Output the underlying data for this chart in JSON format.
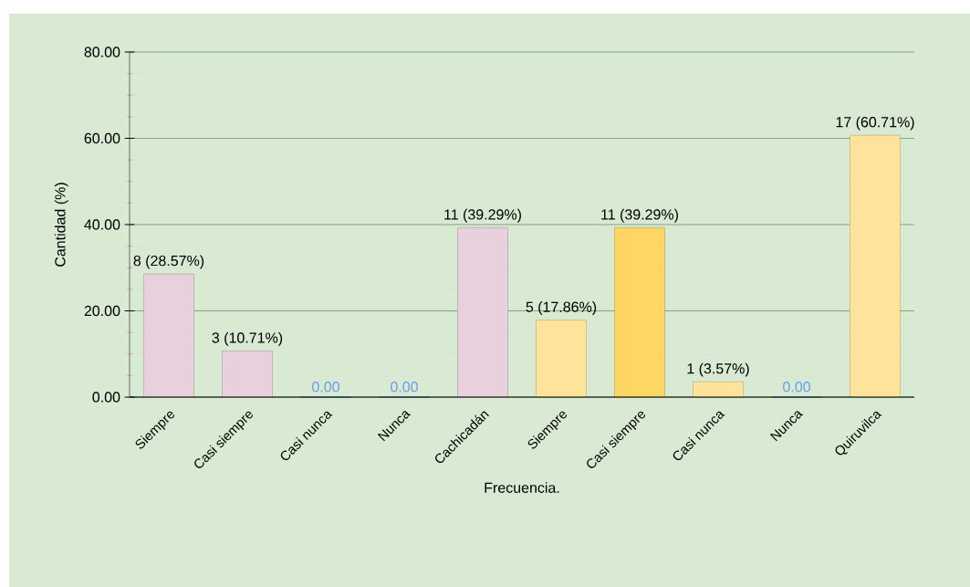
{
  "chart_data": {
    "type": "bar",
    "xlabel": "Frecuencia.",
    "ylabel": "Cantidad (%)",
    "categories": [
      "Siempre",
      "Casi siempre",
      "Casi nunca",
      "Nunca",
      "Cachicadán",
      "Siempre",
      "Casi siempre",
      "Casi nunca",
      "Nunca",
      "Quiruvilca"
    ],
    "values": [
      28.57,
      10.71,
      0,
      0,
      39.29,
      17.86,
      39.29,
      3.57,
      0,
      60.71
    ],
    "colors": [
      "#e8d0dc",
      "#e8d0dc",
      "#6d9eeb",
      "#6d9eeb",
      "#e8d0dc",
      "#fde49a",
      "#fdd663",
      "#fde49a",
      "#6d9eeb",
      "#fde49a"
    ],
    "value_labels": [
      "8 (28.57%)",
      "3 (10.71%)",
      "0.00",
      "0.00",
      "11 (39.29%)",
      "5 (17.86%)",
      "11 (39.29%)",
      "1 (3.57%)",
      "0.00",
      "17 (60.71%)"
    ],
    "ylim": [
      0,
      80
    ],
    "yticks": [
      {
        "value": 0,
        "label": "0.00"
      },
      {
        "value": 20,
        "label": "20.00"
      },
      {
        "value": 40,
        "label": "40.00"
      },
      {
        "value": 60,
        "label": "60.00"
      },
      {
        "value": 80,
        "label": "80.00"
      }
    ],
    "grid": "y"
  }
}
